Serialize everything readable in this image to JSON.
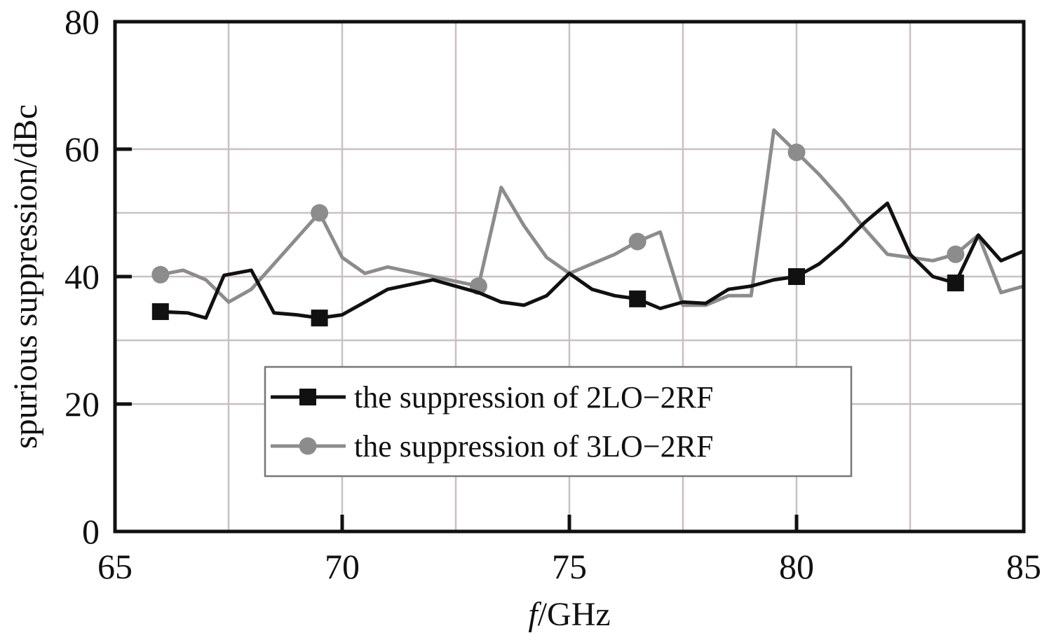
{
  "chart_data": {
    "type": "line",
    "title": "",
    "xlabel_italic": "f",
    "xlabel_rest": "/GHz",
    "ylabel": "spurious suppression/dBc",
    "xlim": [
      65,
      85
    ],
    "ylim": [
      0,
      80
    ],
    "x_ticks": [
      65,
      70,
      75,
      80,
      85
    ],
    "y_ticks": [
      0,
      20,
      40,
      60,
      80
    ],
    "x_minor_grid": [
      67.5,
      72.5,
      77.5,
      82.5
    ],
    "y_minor_grid": [
      30,
      50
    ],
    "grid": true,
    "legend_placement": "bottom-center",
    "series": [
      {
        "name": "the suppression of 2LO−2RF",
        "color": "#111111",
        "marker": "square",
        "x": [
          66,
          66.6,
          67,
          67.4,
          68,
          68.5,
          69,
          69.5,
          70,
          70.5,
          71,
          72,
          73,
          73.5,
          74,
          74.5,
          75,
          75.5,
          76,
          76.5,
          77,
          77.5,
          78,
          78.5,
          79,
          79.5,
          80,
          80.5,
          81,
          81.5,
          82,
          82.5,
          83,
          83.5,
          84,
          84.5,
          85
        ],
        "y": [
          34.5,
          34.3,
          33.5,
          40.2,
          41,
          34.3,
          34,
          33.5,
          34,
          36,
          38,
          39.5,
          37.5,
          36,
          35.5,
          37,
          40.5,
          38,
          37,
          36.5,
          35,
          36,
          35.8,
          38,
          38.5,
          39.5,
          40,
          42,
          45,
          48.5,
          51.5,
          43.5,
          40,
          39,
          46.5,
          42.5,
          44
        ],
        "marker_x": [
          66,
          69.5,
          76.5,
          80,
          83.5
        ],
        "marker_y": [
          34.5,
          33.5,
          36.5,
          40,
          39
        ]
      },
      {
        "name": "the suppression of 3LO−2RF",
        "color": "#8c8c8c",
        "marker": "circle",
        "x": [
          66,
          66.5,
          67,
          67.5,
          68,
          68.5,
          69,
          69.5,
          70,
          70.5,
          71,
          72,
          73,
          73.5,
          74,
          74.5,
          75,
          75.5,
          76,
          76.5,
          77,
          77.5,
          78,
          78.5,
          79,
          79.5,
          80,
          80.5,
          81,
          81.5,
          82,
          82.5,
          83,
          83.5,
          84,
          84.5,
          85
        ],
        "y": [
          40.3,
          41,
          39.5,
          36,
          38,
          42,
          46,
          50,
          43,
          40.5,
          41.5,
          40,
          38.5,
          54,
          48,
          43,
          40.5,
          42,
          43.5,
          45.5,
          47,
          35.5,
          35.5,
          37,
          37,
          63,
          59.5,
          56,
          52,
          47.5,
          43.5,
          43,
          42.5,
          43.5,
          46.5,
          37.5,
          38.5
        ],
        "marker_x": [
          66,
          69.5,
          73,
          76.5,
          80,
          83.5
        ],
        "marker_y": [
          40.3,
          50,
          38.5,
          45.5,
          59.5,
          43.5
        ]
      }
    ]
  }
}
